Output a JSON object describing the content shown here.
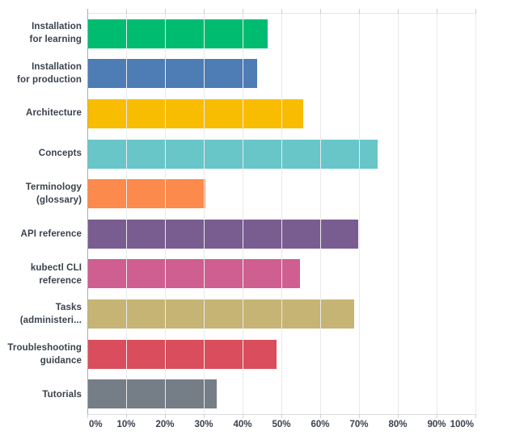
{
  "chart_data": {
    "type": "bar",
    "orientation": "horizontal",
    "title": "",
    "categories": [
      "Installation for learning",
      "Installation for production",
      "Architecture",
      "Concepts",
      "Terminology (glossary)",
      "API reference",
      "kubectl CLI reference",
      "Tasks (administeri...",
      "Troubleshooting guidance",
      "Tutorials"
    ],
    "category_display_lines": [
      [
        "Installation",
        "for learning"
      ],
      [
        "Installation",
        "for production"
      ],
      [
        "Architecture"
      ],
      [
        "Concepts"
      ],
      [
        "Terminology",
        "(glossary)"
      ],
      [
        "API reference"
      ],
      [
        "kubectl CLI",
        "reference"
      ],
      [
        "Tasks",
        "(administeri..."
      ],
      [
        "Troubleshooting",
        "guidance"
      ],
      [
        "Tutorials"
      ]
    ],
    "values": [
      46.3,
      43.5,
      55.5,
      74.5,
      30.3,
      69.5,
      54.5,
      68.5,
      48.5,
      33.1
    ],
    "unit": "%",
    "bar_colors": [
      "#00bc70",
      "#4e7cb5",
      "#f8bc01",
      "#68c6c9",
      "#fb8a4c",
      "#7a5d90",
      "#ce5f90",
      "#c6b475",
      "#d94d5c",
      "#757d87"
    ],
    "x_axis": {
      "min": 0,
      "max": 100,
      "tick_labels": [
        "0%",
        "10%",
        "20%",
        "30%",
        "40%",
        "50%",
        "60%",
        "70%",
        "80%",
        "90%",
        "100%"
      ]
    },
    "grid": "vertical gridlines every 10%",
    "legend": "none"
  },
  "style_colors": {
    "background": "#ffffff",
    "y_axis_line": "#a9acb0",
    "gridline": "#e9eaeb",
    "tick": "#cdd0d2",
    "axis_bottom_line": "#d9dbdd",
    "label_text": "#3a424d"
  }
}
